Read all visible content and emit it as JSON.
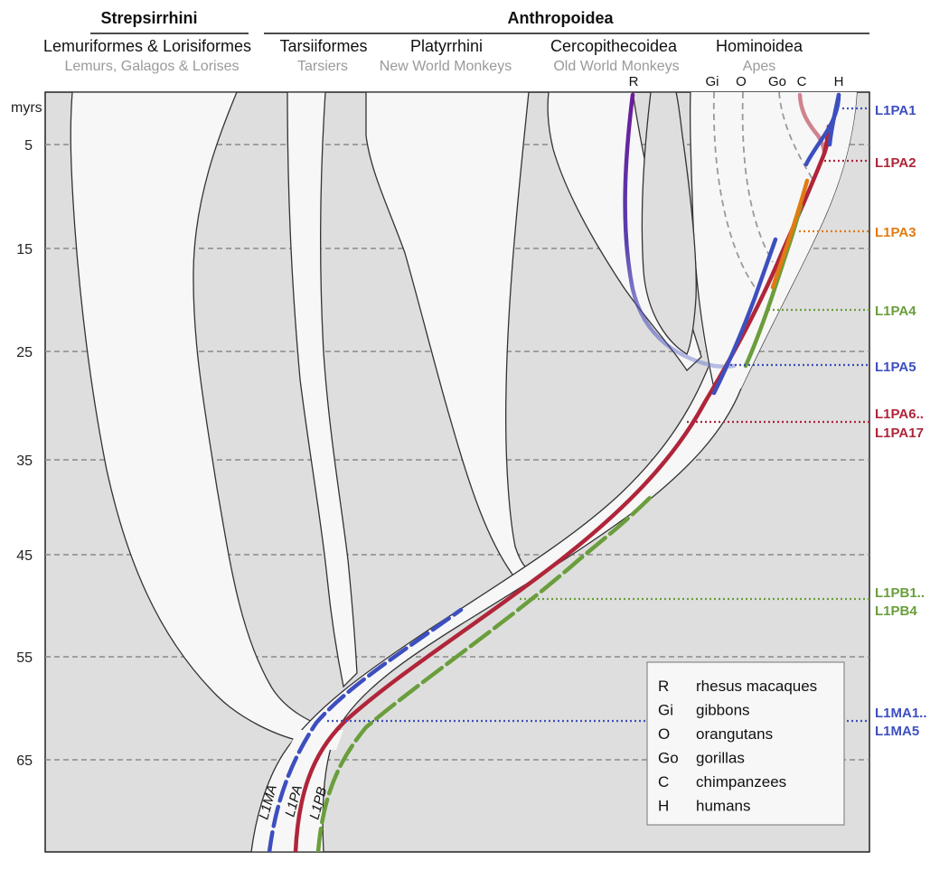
{
  "groups": {
    "strepsirrhini": "Strepsirrhini",
    "anthropoidea": "Anthropoidea"
  },
  "clades": {
    "lemuriformes": {
      "name": "Lemuriformes & Lorisiformes",
      "common": "Lemurs, Galagos & Lorises"
    },
    "tarsiiformes": {
      "name": "Tarsiiformes",
      "common": "Tarsiers"
    },
    "platyrrhini": {
      "name": "Platyrrhini",
      "common": "New World Monkeys"
    },
    "cercopithecoidea": {
      "name": "Cercopithecoidea",
      "common": "Old World Monkeys"
    },
    "hominoidea": {
      "name": "Hominoidea",
      "common": "Apes"
    }
  },
  "species_codes": [
    "R",
    "Gi",
    "O",
    "Go",
    "C",
    "H"
  ],
  "axis": {
    "unit": "myrs",
    "ticks": [
      "5",
      "15",
      "25",
      "35",
      "45",
      "55",
      "65"
    ]
  },
  "lineages": [
    "L1MA",
    "L1PA",
    "L1PB"
  ],
  "families": [
    {
      "key": "l1pa1",
      "line1": "L1PA1",
      "line2": "",
      "color": "#3d4fbf"
    },
    {
      "key": "l1pa2",
      "line1": "L1PA2",
      "line2": "",
      "color": "#b0253a"
    },
    {
      "key": "l1pa3",
      "line1": "L1PA3",
      "line2": "",
      "color": "#e07b12"
    },
    {
      "key": "l1pa4",
      "line1": "L1PA4",
      "line2": "",
      "color": "#6a9e3c"
    },
    {
      "key": "l1pa5",
      "line1": "L1PA5",
      "line2": "",
      "color": "#3d4fbf"
    },
    {
      "key": "l1pa6",
      "line1": "L1PA6..",
      "line2": "L1PA17",
      "color": "#b0253a"
    },
    {
      "key": "l1pb",
      "line1": "L1PB1..",
      "line2": "L1PB4",
      "color": "#6a9e3c"
    },
    {
      "key": "l1ma",
      "line1": "L1MA1..",
      "line2": "L1MA5",
      "color": "#3d4fbf"
    }
  ],
  "legend": [
    {
      "code": "R",
      "name": "rhesus macaques"
    },
    {
      "code": "Gi",
      "name": "gibbons"
    },
    {
      "code": "O",
      "name": "orangutans"
    },
    {
      "code": "Go",
      "name": "gorillas"
    },
    {
      "code": "C",
      "name": "chimpanzees"
    },
    {
      "code": "H",
      "name": "humans"
    }
  ],
  "colors": {
    "blue": "#3d4fbf",
    "red": "#b0253a",
    "orange": "#e07b12",
    "green": "#6a9e3c",
    "purple": "#6a1b9a",
    "tree_fill": "#f7f7f7",
    "plot_bg": "#dedede"
  }
}
